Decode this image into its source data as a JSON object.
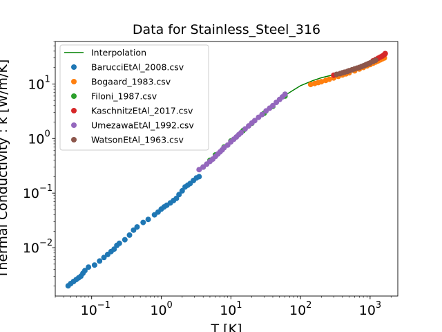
{
  "chart_data": {
    "type": "scatter",
    "title": "Data for Stainless_Steel_316",
    "xlabel": "T [K]",
    "ylabel": "Thermal Conductivity : k [W/m/K]",
    "xscale": "log",
    "yscale": "log",
    "xlim": [
      0.03,
      2500
    ],
    "ylim": [
      0.0013,
      60
    ],
    "x_ticks": [
      {
        "base": "10",
        "exp": "−1",
        "value": 0.1
      },
      {
        "base": "10",
        "exp": "0",
        "value": 1
      },
      {
        "base": "10",
        "exp": "1",
        "value": 10
      },
      {
        "base": "10",
        "exp": "2",
        "value": 100
      },
      {
        "base": "10",
        "exp": "3",
        "value": 1000
      }
    ],
    "y_ticks": [
      {
        "base": "10",
        "exp": "−2",
        "value": 0.01
      },
      {
        "base": "10",
        "exp": "−1",
        "value": 0.1
      },
      {
        "base": "10",
        "exp": "0",
        "value": 1
      },
      {
        "base": "10",
        "exp": "1",
        "value": 10
      }
    ],
    "legend_position": "top-left",
    "line": {
      "name": "Interpolation",
      "color": "#008000",
      "x": [
        3.5,
        5,
        10,
        20,
        40,
        60,
        100,
        150,
        200,
        300,
        500,
        800,
        1200,
        1600
      ],
      "y": [
        0.27,
        0.4,
        0.9,
        1.9,
        3.9,
        6.2,
        9.3,
        11.5,
        13.0,
        14.8,
        17.5,
        21.5,
        26.5,
        32.0
      ]
    },
    "series": [
      {
        "name": "BarucciEtAl_2008.csv",
        "color": "#1f77b4",
        "x": [
          0.046,
          0.05,
          0.055,
          0.06,
          0.065,
          0.07,
          0.075,
          0.08,
          0.09,
          0.11,
          0.13,
          0.15,
          0.17,
          0.19,
          0.21,
          0.23,
          0.25,
          0.3,
          0.35,
          0.4,
          0.45,
          0.55,
          0.65,
          0.8,
          0.9,
          1.0,
          1.1,
          1.2,
          1.35,
          1.5,
          1.65,
          1.8,
          2.0,
          2.2,
          2.4,
          2.6,
          2.9,
          3.2,
          3.5
        ],
        "y": [
          0.002,
          0.0022,
          0.0024,
          0.0026,
          0.0028,
          0.003,
          0.0034,
          0.0038,
          0.0044,
          0.0048,
          0.0057,
          0.0066,
          0.0075,
          0.0085,
          0.0094,
          0.011,
          0.012,
          0.014,
          0.017,
          0.021,
          0.024,
          0.029,
          0.033,
          0.04,
          0.045,
          0.051,
          0.056,
          0.06,
          0.066,
          0.073,
          0.08,
          0.094,
          0.11,
          0.13,
          0.14,
          0.15,
          0.17,
          0.19,
          0.2
        ]
      },
      {
        "name": "Bogaard_1983.csv",
        "color": "#ff7f0e",
        "x": [
          140,
          160,
          180,
          200,
          230,
          260,
          300,
          350,
          400,
          450,
          500,
          600,
          700,
          800,
          900,
          1000,
          1100,
          1200,
          1300,
          1400,
          1500,
          1600
        ],
        "y": [
          9.8,
          10.2,
          10.6,
          11.0,
          11.6,
          12.2,
          12.9,
          13.8,
          14.6,
          15.3,
          16.0,
          17.4,
          18.8,
          20.1,
          21.4,
          22.7,
          24.0,
          25.2,
          26.4,
          27.6,
          28.8,
          30.0
        ]
      },
      {
        "name": "Filoni_1987.csv",
        "color": "#2ca02c",
        "x": [
          4,
          5,
          6,
          8,
          10,
          15,
          20,
          30,
          40,
          60
        ],
        "y": [
          0.3,
          0.4,
          0.5,
          0.7,
          0.9,
          1.4,
          1.9,
          2.9,
          3.9,
          6.0
        ]
      },
      {
        "name": "KaschnitzEtAl_2017.csv",
        "color": "#d62728",
        "x": [
          300,
          1100,
          1200,
          1300,
          1400,
          1500,
          1600,
          1650
        ],
        "y": [
          14.5,
          26.5,
          28.0,
          29.5,
          31.0,
          32.5,
          34.5,
          36.0
        ]
      },
      {
        "name": "UmezawaEtAl_1992.csv",
        "color": "#9467bd",
        "x": [
          3.5,
          4,
          4.5,
          5,
          5.5,
          6,
          6.5,
          7,
          7.5,
          8,
          9,
          10,
          11,
          12,
          13,
          14,
          16,
          18,
          20,
          22,
          25,
          28,
          32,
          36,
          40,
          45,
          50,
          55,
          60
        ],
        "y": [
          0.27,
          0.3,
          0.34,
          0.38,
          0.42,
          0.47,
          0.52,
          0.57,
          0.62,
          0.68,
          0.76,
          0.87,
          0.97,
          1.07,
          1.18,
          1.28,
          1.5,
          1.7,
          1.92,
          2.13,
          2.45,
          2.75,
          3.2,
          3.6,
          4.0,
          4.6,
          5.2,
          5.8,
          6.5
        ]
      },
      {
        "name": "WatsonEtAl_1963.csv",
        "color": "#8c564b",
        "x": [
          330,
          370,
          400,
          430,
          470,
          500,
          550,
          600,
          650,
          700,
          750,
          800,
          850,
          900,
          950,
          1000,
          1100,
          1200
        ],
        "y": [
          15.0,
          15.5,
          16.0,
          16.4,
          16.9,
          17.5,
          18.2,
          18.9,
          19.5,
          20.1,
          20.8,
          21.5,
          22.2,
          22.9,
          23.6,
          24.3,
          25.8,
          27.3
        ]
      }
    ]
  }
}
